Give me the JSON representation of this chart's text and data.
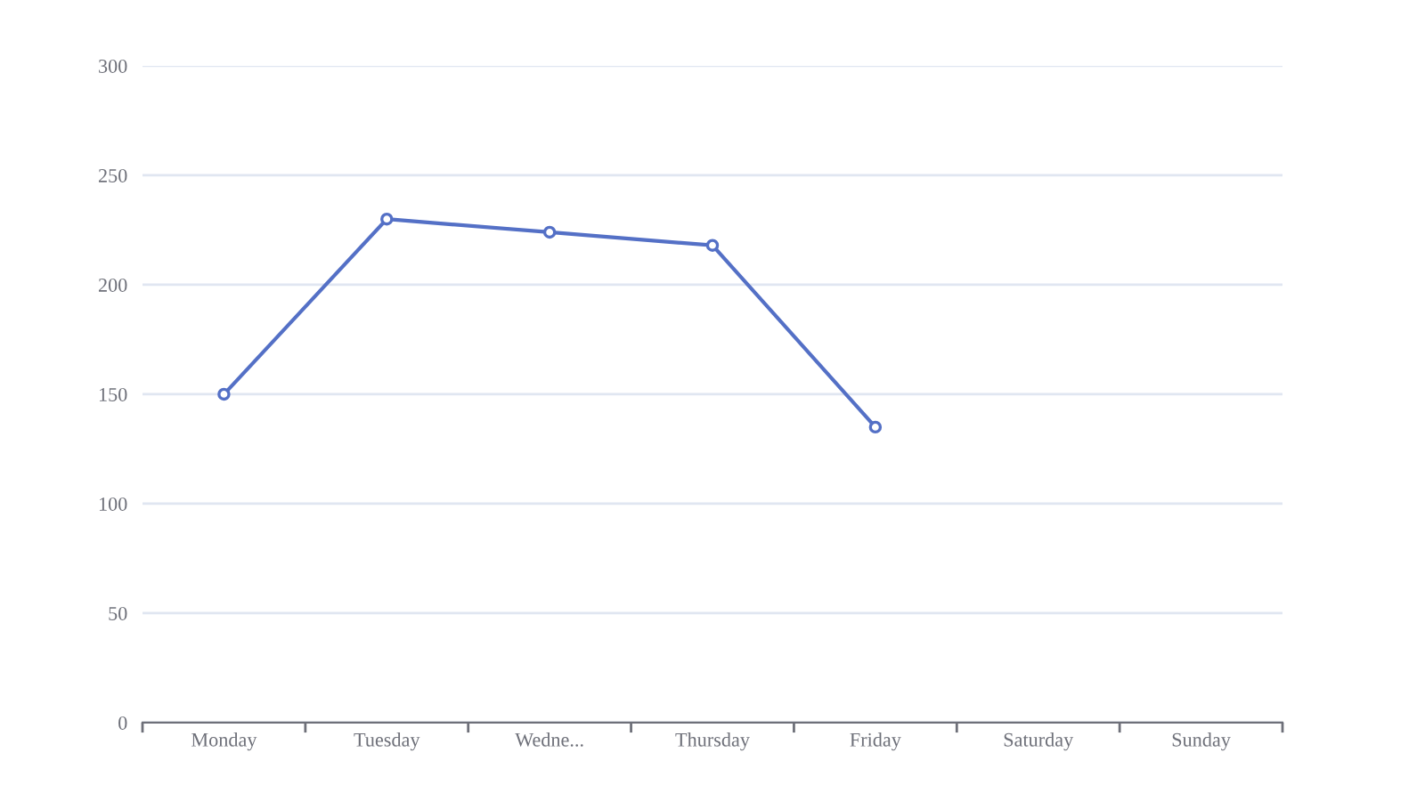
{
  "chart_data": {
    "type": "line",
    "categories": [
      "Monday",
      "Tuesday",
      "Wedne...",
      "Thursday",
      "Friday",
      "Saturday",
      "Sunday"
    ],
    "series": [
      {
        "color": "#5470c6",
        "values": [
          150,
          230,
          224,
          218,
          135,
          null,
          null
        ]
      }
    ],
    "ylim": [
      0,
      300
    ],
    "yticks": [
      0,
      50,
      100,
      150,
      200,
      250,
      300
    ],
    "grid": "y",
    "marker": "circle",
    "line_style": "solid"
  }
}
